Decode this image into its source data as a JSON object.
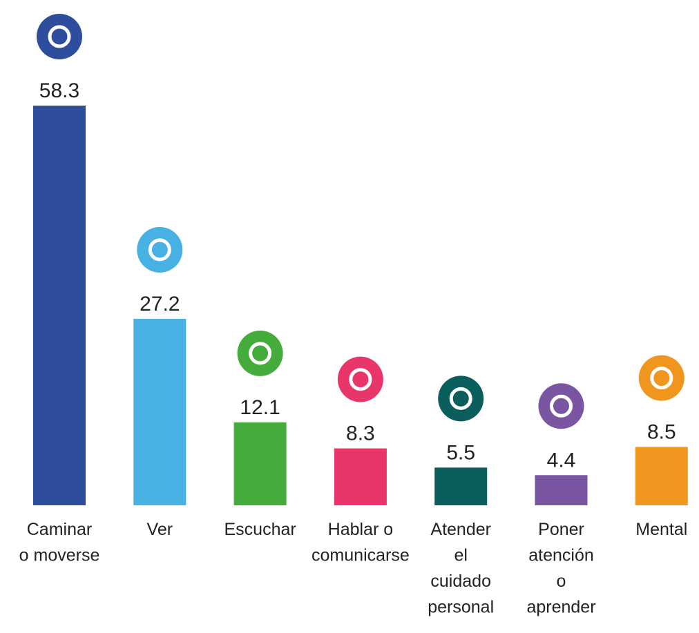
{
  "chart_data": {
    "type": "bar",
    "categories": [
      [
        "Caminar",
        "o moverse"
      ],
      [
        "Ver"
      ],
      [
        "Escuchar"
      ],
      [
        "Hablar o",
        "comunicarse"
      ],
      [
        "Atender",
        "el",
        "cuidado",
        "personal"
      ],
      [
        "Poner",
        "atención",
        "o",
        "aprender"
      ],
      [
        "Mental"
      ]
    ],
    "values": [
      58.3,
      27.2,
      12.1,
      8.3,
      5.5,
      4.4,
      8.5
    ],
    "colors": [
      "#2e4d9c",
      "#48b1e4",
      "#44ac3b",
      "#e8356a",
      "#0a5e5c",
      "#7a55a1",
      "#f0951d"
    ]
  }
}
